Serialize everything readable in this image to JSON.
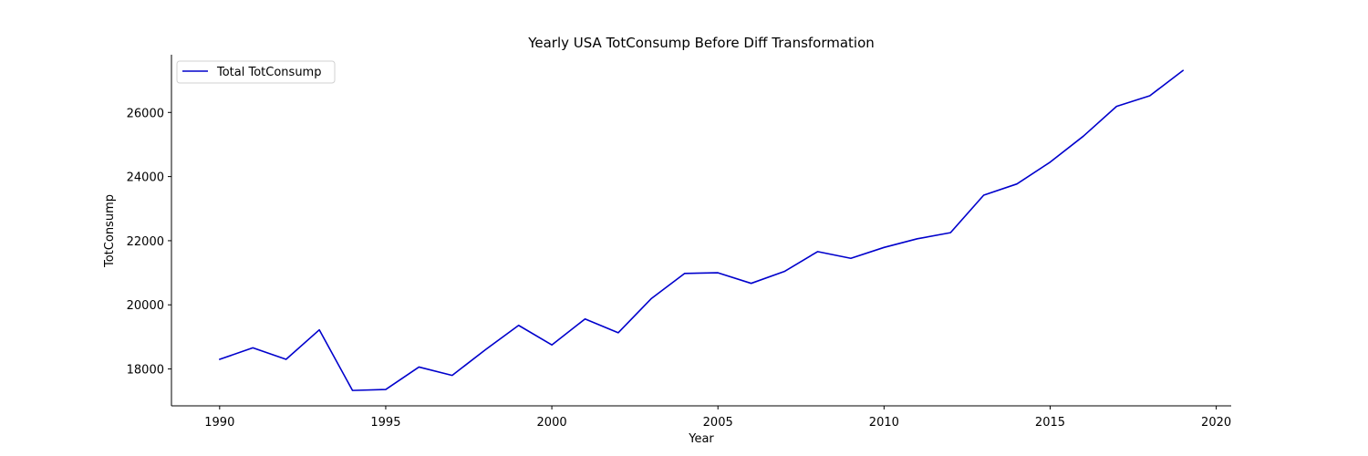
{
  "chart_data": {
    "type": "line",
    "title": "Yearly USA TotConsump Before Diff Transformation",
    "xlabel": "Year",
    "ylabel": "TotConsump",
    "xlim": [
      1988.55,
      2020.45
    ],
    "ylim": [
      16850,
      27800
    ],
    "x_ticks": [
      1990,
      1995,
      2000,
      2005,
      2010,
      2015,
      2020
    ],
    "y_ticks": [
      18000,
      20000,
      22000,
      24000,
      26000
    ],
    "grid": false,
    "legend_position": "top-left",
    "series": [
      {
        "name": "Total TotConsump",
        "color": "#0000cc",
        "x": [
          1990,
          1991,
          1992,
          1993,
          1994,
          1995,
          1996,
          1997,
          1998,
          1999,
          2000,
          2001,
          2002,
          2003,
          2004,
          2005,
          2006,
          2007,
          2008,
          2009,
          2010,
          2011,
          2012,
          2013,
          2014,
          2015,
          2016,
          2017,
          2018,
          2019
        ],
        "values": [
          18300,
          18660,
          18300,
          19220,
          17330,
          17360,
          18060,
          17800,
          18600,
          19360,
          18750,
          19560,
          19130,
          20200,
          20980,
          21000,
          20670,
          21040,
          21660,
          21450,
          21790,
          22060,
          22250,
          23420,
          23770,
          24450,
          25260,
          26190,
          26520,
          27310
        ]
      }
    ]
  }
}
